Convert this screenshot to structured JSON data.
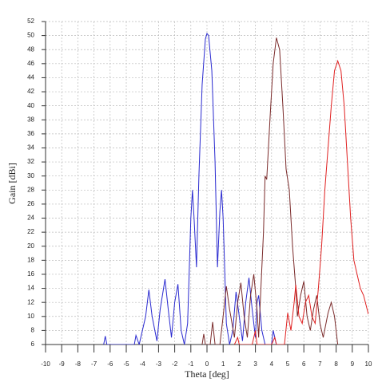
{
  "chart_data": {
    "type": "line",
    "xlabel": "Theta [deg]",
    "ylabel": "Gain [dBi]",
    "xlim": [
      -10,
      10
    ],
    "xticks": [
      -10,
      -9,
      -8,
      -7,
      -6,
      -5,
      -4,
      -3,
      -2,
      -1,
      0,
      1,
      2,
      3,
      4,
      5,
      6,
      7,
      8,
      9,
      10
    ],
    "ylim": [
      6,
      52
    ],
    "yticks": [
      6,
      8,
      10,
      12,
      14,
      16,
      18,
      20,
      22,
      24,
      26,
      28,
      30,
      32,
      34,
      36,
      38,
      40,
      42,
      44,
      46,
      48,
      50,
      52
    ],
    "grid": true,
    "series": [
      {
        "color": "#2a2ad0",
        "x": [
          -6.4,
          -6.3,
          -6.2,
          -4.5,
          -4.4,
          -4.2,
          -3.8,
          -3.6,
          -3.4,
          -3.1,
          -2.9,
          -2.6,
          -2.4,
          -2.2,
          -2.0,
          -1.8,
          -1.6,
          -1.4,
          -1.2,
          -1.0,
          -0.9,
          -0.8,
          -0.65,
          -0.5,
          -0.3,
          -0.1,
          0,
          0.1,
          0.3,
          0.5,
          0.65,
          0.8,
          0.9,
          1.0,
          1.2,
          1.4,
          1.6,
          1.8,
          2.0,
          2.2,
          2.4,
          2.6,
          2.8,
          3.0,
          3.1,
          3.2,
          3.4,
          3.6,
          4.0,
          4.1,
          4.3
        ],
        "values": [
          6,
          7.2,
          6,
          6,
          7.3,
          6,
          10,
          13.8,
          10,
          6.5,
          11,
          15.3,
          11,
          7,
          12,
          14.6,
          8,
          6,
          9,
          24,
          28,
          24,
          17,
          30,
          43,
          49.5,
          50.3,
          50,
          45,
          32,
          17,
          25,
          28,
          24,
          9,
          6,
          8,
          13.5,
          10,
          6.5,
          12,
          15.5,
          11,
          7,
          12,
          13,
          8,
          6,
          6,
          8,
          6
        ]
      },
      {
        "color": "#7a2a2a",
        "x": [
          -0.3,
          -0.2,
          -0.1,
          0.2,
          0.35,
          0.5,
          0.8,
          1.0,
          1.2,
          1.4,
          1.7,
          1.9,
          2.1,
          2.3,
          2.5,
          2.7,
          2.9,
          3.1,
          3.2,
          3.3,
          3.5,
          3.6,
          3.7,
          3.9,
          4.1,
          4.3,
          4.5,
          4.7,
          4.9,
          5.1,
          5.3,
          5.5,
          5.6,
          5.8,
          6.0,
          6.2,
          6.4,
          6.6,
          6.8,
          7.0,
          7.2,
          7.5,
          7.7,
          7.9,
          8.1
        ],
        "values": [
          6,
          7.5,
          6,
          6,
          9.2,
          6,
          6,
          10,
          14.3,
          11,
          7,
          12,
          14.8,
          10,
          7,
          13,
          16,
          11,
          7,
          12,
          22,
          30,
          29.5,
          38,
          46,
          49.7,
          48,
          40,
          31,
          28,
          20,
          14,
          10,
          13,
          15,
          10,
          8,
          11,
          13,
          9,
          7,
          10.5,
          12,
          10,
          6
        ]
      },
      {
        "color": "#e02020",
        "x": [
          1.7,
          1.9,
          2.0,
          2.8,
          3.0,
          3.1,
          4.0,
          4.2,
          4.3,
          4.8,
          5.0,
          5.2,
          5.4,
          5.5,
          5.7,
          5.9,
          6.1,
          6.3,
          6.5,
          6.7,
          6.9,
          7.1,
          7.3,
          7.5,
          7.7,
          7.9,
          8.1,
          8.3,
          8.5,
          8.7,
          8.9,
          9.1,
          9.3,
          9.5,
          9.7,
          10
        ],
        "values": [
          6,
          7,
          6,
          6,
          8,
          6,
          6,
          7,
          6,
          6,
          10.5,
          8,
          12,
          14.5,
          10,
          9,
          12,
          13,
          10,
          9,
          14,
          20,
          28,
          34,
          40,
          45,
          46.4,
          45,
          40,
          32,
          24,
          18,
          16,
          14,
          13,
          10.3
        ]
      }
    ]
  }
}
